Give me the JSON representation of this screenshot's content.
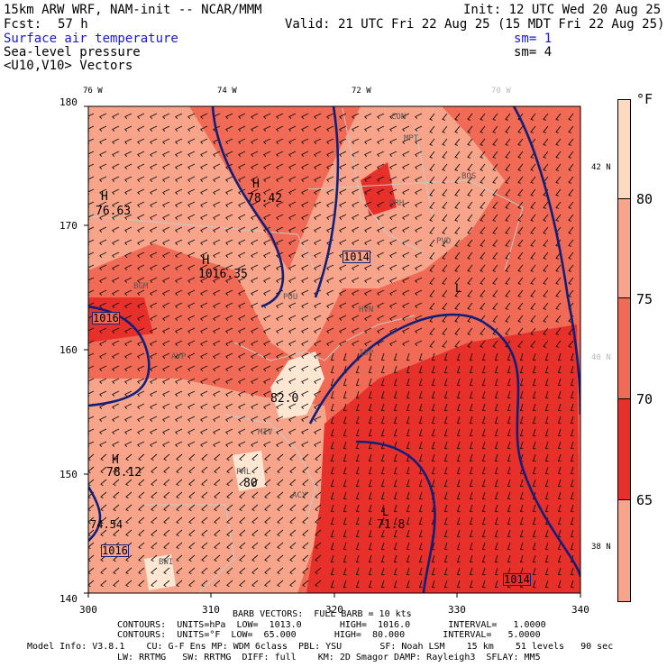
{
  "header": {
    "model_line": "15km ARW WRF, NAM-init -- NCAR/MMM",
    "init_line": "Init: 12 UTC Wed 20 Aug 25",
    "fcst_label": "Fcst:",
    "fcst_value": "57 h",
    "valid_line": "Valid: 21 UTC Fri 22 Aug 25 (15 MDT Fri 22 Aug 25)",
    "field1": "Surface air temperature",
    "field1_sm": "sm= 1",
    "field2": "Sea-level pressure",
    "field2_sm": "sm= 4",
    "field3": "<U10,V10> Vectors"
  },
  "axes": {
    "top_lon": [
      "76 W",
      "74 W",
      "72 W",
      "70 W"
    ],
    "right_lat": [
      "42 N",
      "40 N",
      "38 N"
    ],
    "left_y": [
      "180",
      "170",
      "160",
      "150",
      "140"
    ],
    "bottom_x": [
      "300",
      "310",
      "320",
      "330",
      "340"
    ]
  },
  "colorbar": {
    "unit": "°F",
    "labels": [
      "80",
      "75",
      "70",
      "65"
    ],
    "colors": [
      "#fdd9c0",
      "#f7a48a",
      "#f06a55",
      "#e8302a",
      "#f7a48a",
      "#fbc18a"
    ]
  },
  "map_labels": {
    "highs": [
      "H",
      "H",
      "H",
      "H",
      "L",
      "L"
    ],
    "values": [
      "76.63",
      "78.42",
      "1016.35",
      "82.0",
      "78.12",
      "80",
      "74.54",
      "71.8",
      "1014"
    ],
    "isobars": [
      "1016",
      "1014",
      "1016",
      "1014"
    ],
    "stations": [
      "CON",
      "MPT",
      "ORH",
      "PVD",
      "HVN",
      "POU",
      "BGM",
      "AVP",
      "ISP",
      "PHL",
      "ACY",
      "BWI",
      "MIV",
      "BOS"
    ]
  },
  "footer": {
    "barb": "BARB VECTORS:  FULL BARB = 10 kts",
    "contours1": "CONTOURS:  UNITS=hPa  LOW=  1013.0       HIGH=  1016.0       INTERVAL=   1.0000",
    "contours2": "CONTOURS:  UNITS=°F  LOW=  65.000       HIGH=  80.000       INTERVAL=   5.0000",
    "model_info": "Model Info: V3.8.1    CU: G-F Ens MP: WDM 6class  PBL: YSU       SF: Noah LSM    15 km    51 levels   90 sec",
    "model_info2": "LW: RRTMG   SW: RRTMG  DIFF: full    KM: 2D Smagor DAMP: Rayleigh3  SFLAY: MM5"
  }
}
